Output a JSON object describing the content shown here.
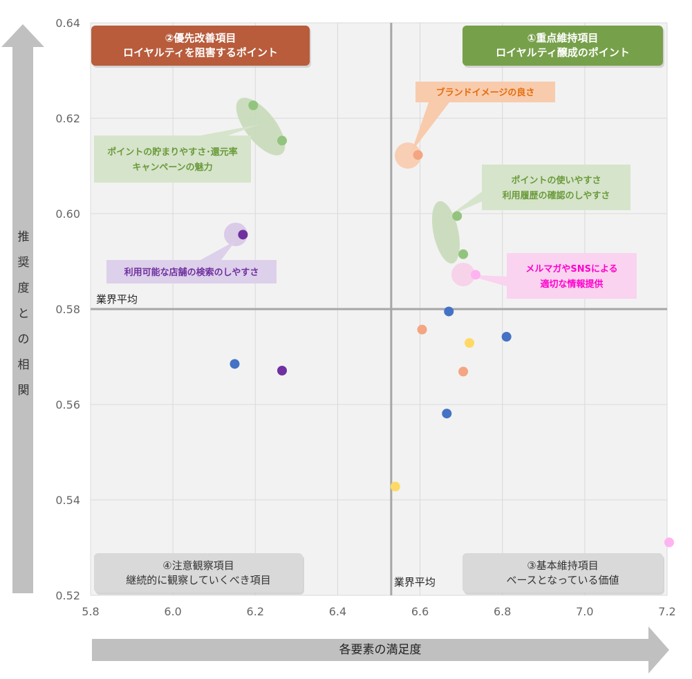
{
  "chart_data": {
    "type": "scatter",
    "xlabel": "各要素の満足度",
    "ylabel_chars": [
      "推",
      "奨",
      "度",
      "と",
      "の",
      "相",
      "関"
    ],
    "xlim": [
      5.8,
      7.2
    ],
    "ylim": [
      0.52,
      0.64
    ],
    "x_ticks": [
      "5.8",
      "6.0",
      "6.2",
      "6.4",
      "6.6",
      "6.8",
      "7.0",
      "7.2"
    ],
    "y_ticks": [
      "0.52",
      "0.54",
      "0.56",
      "0.58",
      "0.60",
      "0.62",
      "0.64"
    ],
    "grid": true,
    "ref_lines": {
      "x": 6.53,
      "y": 0.58,
      "x_label": "業界平均",
      "y_label": "業界平均"
    },
    "points": [
      {
        "x": 6.195,
        "y": 0.6227,
        "color": "#93c47d"
      },
      {
        "x": 6.265,
        "y": 0.6153,
        "color": "#93c47d"
      },
      {
        "x": 6.69,
        "y": 0.5995,
        "color": "#93c47d"
      },
      {
        "x": 6.705,
        "y": 0.5915,
        "color": "#93c47d"
      },
      {
        "x": 6.595,
        "y": 0.6123,
        "color": "#f4a582"
      },
      {
        "x": 6.605,
        "y": 0.5757,
        "color": "#f4a582"
      },
      {
        "x": 6.705,
        "y": 0.5669,
        "color": "#f4a582"
      },
      {
        "x": 6.735,
        "y": 0.5872,
        "color": "#ffb3f0"
      },
      {
        "x": 7.205,
        "y": 0.5311,
        "color": "#ffb3f0"
      },
      {
        "x": 6.17,
        "y": 0.5956,
        "color": "#7030a0"
      },
      {
        "x": 6.265,
        "y": 0.5671,
        "color": "#7030a0"
      },
      {
        "x": 6.15,
        "y": 0.5685,
        "color": "#4472c4"
      },
      {
        "x": 6.67,
        "y": 0.5795,
        "color": "#4472c4"
      },
      {
        "x": 6.81,
        "y": 0.5742,
        "color": "#4472c4"
      },
      {
        "x": 6.665,
        "y": 0.5581,
        "color": "#4472c4"
      },
      {
        "x": 6.72,
        "y": 0.5729,
        "color": "#ffd966"
      },
      {
        "x": 6.54,
        "y": 0.5428,
        "color": "#ffd966"
      }
    ],
    "quadrants": [
      {
        "key": "q1",
        "line1": "①重点維持項目",
        "line2": "ロイヤルティ醸成のポイント",
        "color": "#77a04a"
      },
      {
        "key": "q2",
        "line1": "②優先改善項目",
        "line2": "ロイヤルティを阻害するポイント",
        "color": "#b85c3c"
      },
      {
        "key": "q3",
        "line1": "③基本維持項目",
        "line2": "ベースとなっている価値",
        "color": "#d9d9d9"
      },
      {
        "key": "q4",
        "line1": "④注意観察項目",
        "line2": "継続的に観察していくべき項目",
        "color": "#d9d9d9"
      }
    ],
    "annotations": [
      {
        "key": "brand",
        "lines": [
          "ブランドイメージの良さ"
        ],
        "color": "#e46c0a",
        "bg": "#f8cbad"
      },
      {
        "key": "point_usage",
        "lines": [
          "ポイントの使いやすさ",
          "利用履歴の確認のしやすさ"
        ],
        "color": "#6a9a3a",
        "bg": "#d6e4cb"
      },
      {
        "key": "point_rate",
        "lines": [
          "ポイントの貯まりやすさ･還元率",
          "キャンペーンの魅力"
        ],
        "color": "#6a9a3a",
        "bg": "#d6e4cb"
      },
      {
        "key": "store_search",
        "lines": [
          "利用可能な店舗の検索のしやすさ"
        ],
        "color": "#7030a0",
        "bg": "#ddd0ea"
      },
      {
        "key": "mail_sns",
        "lines": [
          "メルマガやSNSによる",
          "適切な情報提供"
        ],
        "color": "#ff00cc",
        "bg": "#f9d3ef"
      }
    ]
  }
}
